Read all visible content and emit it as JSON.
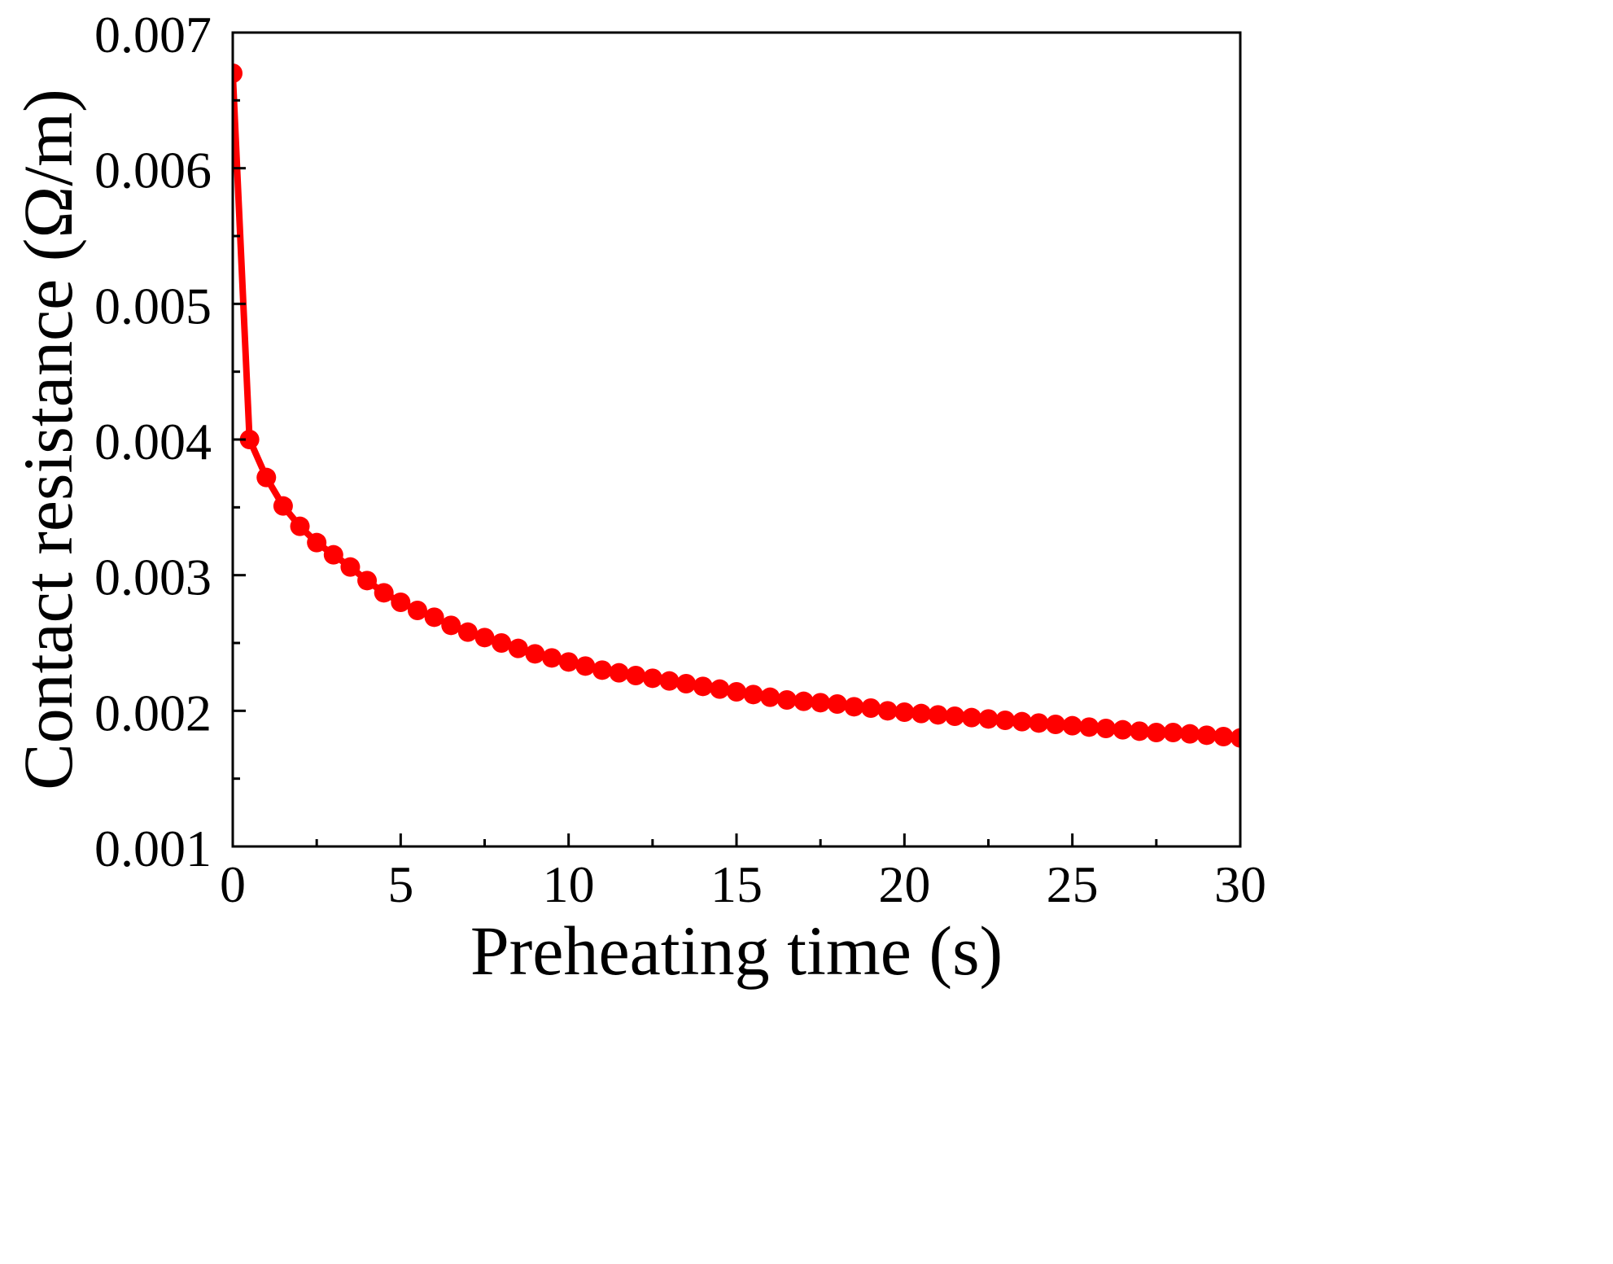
{
  "chart_data": {
    "type": "scatter",
    "title": "",
    "xlabel": "Preheating time (s)",
    "ylabel": "Contact resistance (Ω/m)",
    "xlim": [
      0,
      30
    ],
    "ylim": [
      0.001,
      0.007
    ],
    "x_ticks": [
      0,
      5,
      10,
      15,
      20,
      25,
      30
    ],
    "x_tick_labels": [
      "0",
      "5",
      "10",
      "15",
      "20",
      "25",
      "30"
    ],
    "y_ticks": [
      0.001,
      0.002,
      0.003,
      0.004,
      0.005,
      0.006,
      0.007
    ],
    "y_tick_labels": [
      "0.001",
      "0.002",
      "0.003",
      "0.004",
      "0.005",
      "0.006",
      "0.007"
    ],
    "grid": false,
    "legend": "none",
    "series": [
      {
        "name": "Contact resistance",
        "color": "#ff0000",
        "marker": "circle",
        "line": true,
        "x": [
          0,
          0.5,
          1,
          1.5,
          2,
          2.5,
          3,
          3.5,
          4,
          4.5,
          5,
          5.5,
          6,
          6.5,
          7,
          7.5,
          8,
          8.5,
          9,
          9.5,
          10,
          10.5,
          11,
          11.5,
          12,
          12.5,
          13,
          13.5,
          14,
          14.5,
          15,
          15.5,
          16,
          16.5,
          17,
          17.5,
          18,
          18.5,
          19,
          19.5,
          20,
          20.5,
          21,
          21.5,
          22,
          22.5,
          23,
          23.5,
          24,
          24.5,
          25,
          25.5,
          26,
          26.5,
          27,
          27.5,
          28,
          28.5,
          29,
          29.5,
          30
        ],
        "y": [
          0.0067,
          0.004,
          0.00372,
          0.00351,
          0.00336,
          0.00324,
          0.00315,
          0.00306,
          0.00296,
          0.00287,
          0.0028,
          0.00274,
          0.00269,
          0.00263,
          0.00258,
          0.00254,
          0.0025,
          0.00246,
          0.00242,
          0.00239,
          0.00236,
          0.00233,
          0.0023,
          0.00228,
          0.00226,
          0.00224,
          0.00222,
          0.0022,
          0.00218,
          0.00216,
          0.00214,
          0.00212,
          0.0021,
          0.00208,
          0.00207,
          0.00206,
          0.00205,
          0.00203,
          0.00202,
          0.002,
          0.00199,
          0.00198,
          0.00197,
          0.00196,
          0.00195,
          0.00194,
          0.00193,
          0.00192,
          0.00191,
          0.0019,
          0.00189,
          0.00188,
          0.00187,
          0.00186,
          0.00185,
          0.00184,
          0.00184,
          0.00183,
          0.00182,
          0.00181,
          0.0018
        ]
      }
    ]
  }
}
